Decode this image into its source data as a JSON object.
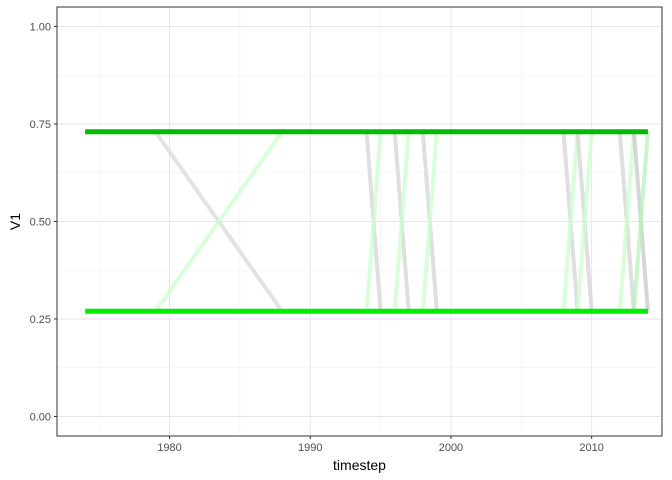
{
  "chart_data": {
    "type": "line",
    "title": "",
    "xlabel": "timestep",
    "ylabel": "V1",
    "xlim": [
      1972.0,
      2015.0
    ],
    "ylim": [
      -0.05,
      1.05
    ],
    "x_ticks": [
      1980,
      1990,
      2000,
      2010
    ],
    "x_tick_labels": [
      "1980",
      "1990",
      "2000",
      "2010"
    ],
    "y_ticks": [
      0.0,
      0.25,
      0.5,
      0.75,
      1.0
    ],
    "y_tick_labels": [
      "0.00",
      "0.25",
      "0.50",
      "0.75",
      "1.00"
    ],
    "grid": true,
    "legend": "none",
    "transitions": [
      {
        "x": [
          1979,
          1988
        ],
        "y": [
          0.73,
          0.27
        ],
        "color": "#d9d9d9"
      },
      {
        "x": [
          1979,
          1988
        ],
        "y": [
          0.27,
          0.73
        ],
        "color": "#ccffcc"
      },
      {
        "x": [
          1994,
          1995
        ],
        "y": [
          0.73,
          0.27
        ],
        "color": "#d4d4d4"
      },
      {
        "x": [
          1994,
          1995
        ],
        "y": [
          0.27,
          0.73
        ],
        "color": "#ccffcc"
      },
      {
        "x": [
          1996,
          1997
        ],
        "y": [
          0.73,
          0.27
        ],
        "color": "#d4d4d4"
      },
      {
        "x": [
          1996,
          1997
        ],
        "y": [
          0.27,
          0.73
        ],
        "color": "#ccffcc"
      },
      {
        "x": [
          1998,
          1999
        ],
        "y": [
          0.73,
          0.27
        ],
        "color": "#d4d4d4"
      },
      {
        "x": [
          1998,
          1999
        ],
        "y": [
          0.27,
          0.73
        ],
        "color": "#ccffcc"
      },
      {
        "x": [
          2008,
          2009
        ],
        "y": [
          0.73,
          0.27
        ],
        "color": "#d4d4d4"
      },
      {
        "x": [
          2008,
          2009
        ],
        "y": [
          0.27,
          0.73
        ],
        "color": "#ccffcc"
      },
      {
        "x": [
          2009,
          2010
        ],
        "y": [
          0.73,
          0.27
        ],
        "color": "#d4d4d4"
      },
      {
        "x": [
          2009,
          2010
        ],
        "y": [
          0.27,
          0.73
        ],
        "color": "#ccffcc"
      },
      {
        "x": [
          2012,
          2013
        ],
        "y": [
          0.73,
          0.27
        ],
        "color": "#d4d4d4"
      },
      {
        "x": [
          2012,
          2013
        ],
        "y": [
          0.27,
          0.73
        ],
        "color": "#ccffcc"
      },
      {
        "x": [
          2013,
          2014
        ],
        "y": [
          0.73,
          0.27
        ],
        "color": "#c8c8c8"
      },
      {
        "x": [
          2013,
          2014
        ],
        "y": [
          0.27,
          0.73
        ],
        "color": "#b8f0b8"
      }
    ],
    "levels": [
      {
        "x": [
          1974,
          2014
        ],
        "y": [
          0.73,
          0.73
        ],
        "color": "#00bb00"
      },
      {
        "x": [
          1974,
          2014
        ],
        "y": [
          0.27,
          0.27
        ],
        "color": "#00ee00"
      }
    ]
  }
}
